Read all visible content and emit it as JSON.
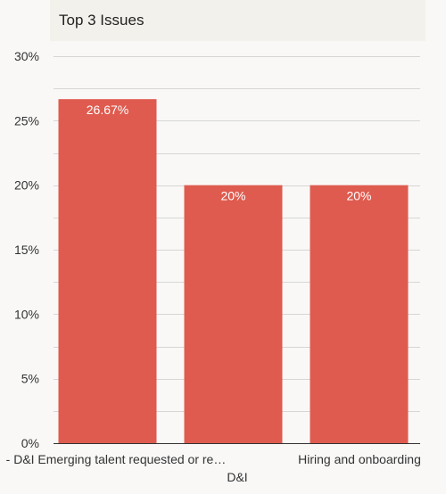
{
  "chart_data": {
    "type": "bar",
    "title": "Top 3 Issues",
    "categories": [
      "- D&I Emerging talent requested or re…",
      "D&I",
      "Hiring and onboarding"
    ],
    "values": [
      26.67,
      20,
      20
    ],
    "data_labels": [
      "26.67%",
      "20%",
      "20%"
    ],
    "xlabel": "",
    "ylabel": "",
    "ylim": [
      0,
      30
    ],
    "yticks": [
      0,
      5,
      10,
      15,
      20,
      25,
      30
    ],
    "ytick_labels": [
      "0%",
      "5%",
      "10%",
      "15%",
      "20%",
      "25%",
      "30%"
    ],
    "grid": true,
    "legend": "none",
    "colors": {
      "bar": "#df5b4f",
      "grid": "#d6d6d6",
      "baseline": "#333333",
      "tick_text": "#333333",
      "label_text": "#ffffff",
      "title_bg": "#f3f1eb",
      "background": "#f9f8f7"
    }
  }
}
